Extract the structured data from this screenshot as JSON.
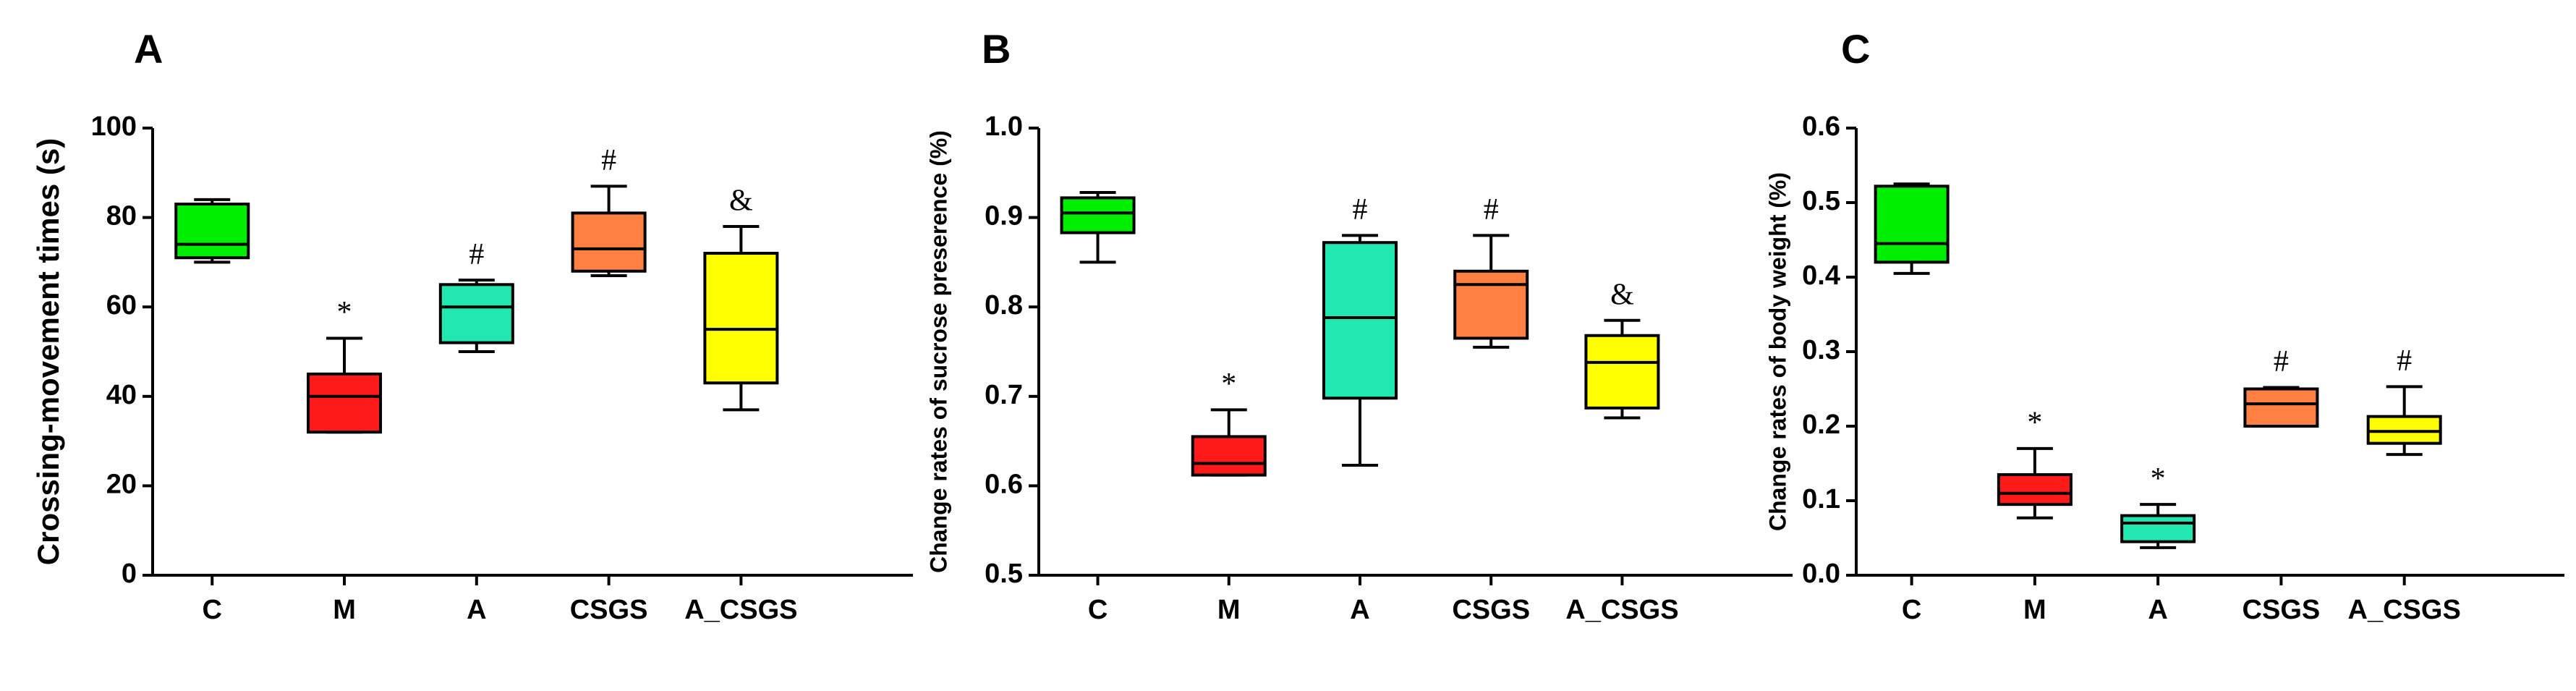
{
  "chart_data": [
    {
      "type": "box",
      "title": "A",
      "ylabel": "Crossing-movement times (s)",
      "categories": [
        "C",
        "M",
        "A",
        "CSGS",
        "A_CSGS"
      ],
      "colors": [
        "#00ee00",
        "#ff1a1a",
        "#20e8b0",
        "#ff8040",
        "#ffff00"
      ],
      "boxes": [
        {
          "min": 70,
          "q1": 71,
          "median": 74,
          "q3": 83,
          "max": 84
        },
        {
          "min": 32,
          "q1": 32,
          "median": 40,
          "q3": 45,
          "max": 53
        },
        {
          "min": 50,
          "q1": 52,
          "median": 60,
          "q3": 65,
          "max": 66
        },
        {
          "min": 67,
          "q1": 68,
          "median": 73,
          "q3": 81,
          "max": 87
        },
        {
          "min": 37,
          "q1": 43,
          "median": 55,
          "q3": 72,
          "max": 78
        }
      ],
      "annotations": [
        null,
        "*",
        "#",
        "#",
        "&"
      ],
      "ylim": [
        0,
        100
      ],
      "yticks": [
        0,
        20,
        40,
        60,
        80,
        100
      ]
    },
    {
      "type": "box",
      "title": "B",
      "ylabel": "Change rates of sucrose preserence (%)",
      "categories": [
        "C",
        "M",
        "A",
        "CSGS",
        "A_CSGS"
      ],
      "colors": [
        "#00ee00",
        "#ff1a1a",
        "#20e8b0",
        "#ff8040",
        "#ffff00"
      ],
      "boxes": [
        {
          "min": 0.85,
          "q1": 0.883,
          "median": 0.905,
          "q3": 0.922,
          "max": 0.928
        },
        {
          "min": 0.612,
          "q1": 0.612,
          "median": 0.625,
          "q3": 0.655,
          "max": 0.685
        },
        {
          "min": 0.623,
          "q1": 0.698,
          "median": 0.788,
          "q3": 0.872,
          "max": 0.88
        },
        {
          "min": 0.755,
          "q1": 0.765,
          "median": 0.825,
          "q3": 0.84,
          "max": 0.88
        },
        {
          "min": 0.676,
          "q1": 0.687,
          "median": 0.738,
          "q3": 0.768,
          "max": 0.785
        }
      ],
      "annotations": [
        null,
        "*",
        "#",
        "#",
        "&"
      ],
      "ylim": [
        0.5,
        1.0
      ],
      "yticks": [
        0.5,
        0.6,
        0.7,
        0.8,
        0.9,
        {
          "value": 1.0,
          "label": "1.0"
        }
      ]
    },
    {
      "type": "box",
      "title": "C",
      "ylabel": "Change rates of body weight (%)",
      "categories": [
        "C",
        "M",
        "A",
        "CSGS",
        "A_CSGS"
      ],
      "colors": [
        "#00ee00",
        "#ff1a1a",
        "#20e8b0",
        "#ff8040",
        "#ffff00"
      ],
      "boxes": [
        {
          "min": 0.405,
          "q1": 0.42,
          "median": 0.445,
          "q3": 0.522,
          "max": 0.525
        },
        {
          "min": 0.077,
          "q1": 0.095,
          "median": 0.11,
          "q3": 0.135,
          "max": 0.17
        },
        {
          "min": 0.037,
          "q1": 0.045,
          "median": 0.07,
          "q3": 0.08,
          "max": 0.095
        },
        {
          "min": 0.2,
          "q1": 0.2,
          "median": 0.23,
          "q3": 0.25,
          "max": 0.252
        },
        {
          "min": 0.162,
          "q1": 0.177,
          "median": 0.193,
          "q3": 0.213,
          "max": 0.253
        }
      ],
      "annotations": [
        null,
        "*",
        "*",
        "#",
        "#"
      ],
      "ylim": [
        0,
        0.6
      ],
      "yticks": [
        {
          "value": 0,
          "label": "0.0"
        },
        0.1,
        0.2,
        0.3,
        0.4,
        0.5,
        0.6
      ]
    }
  ]
}
